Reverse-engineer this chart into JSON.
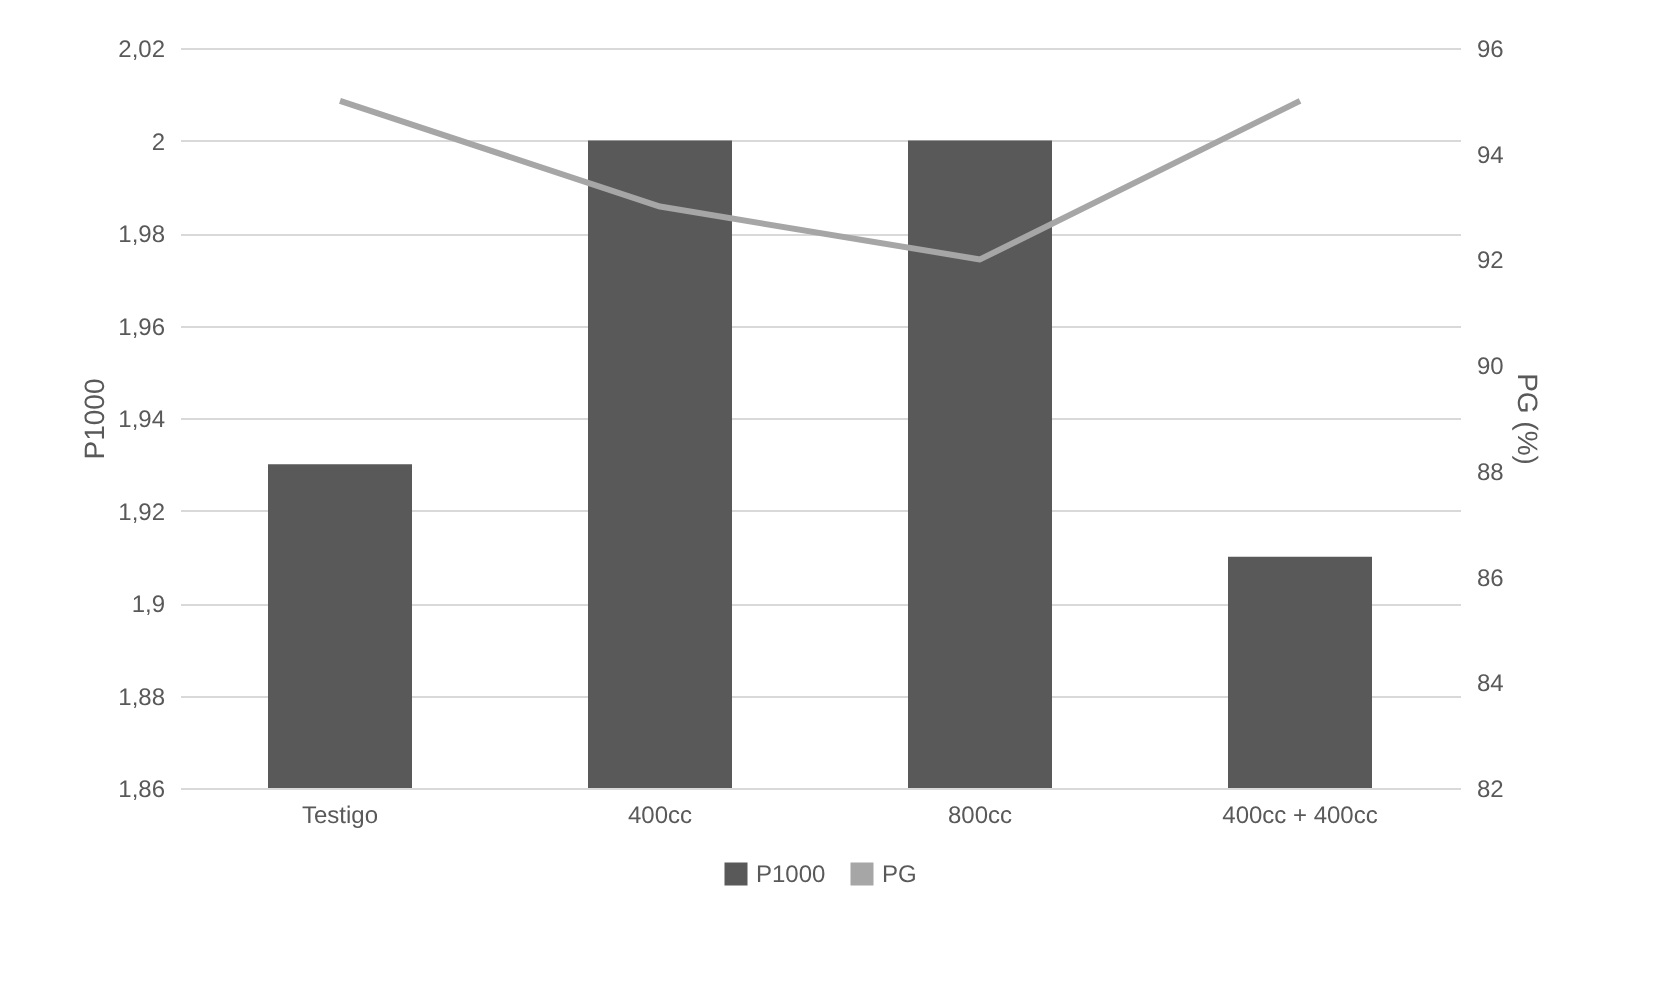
{
  "chart_data": {
    "type": "bar",
    "categories": [
      "Testigo",
      "400cc",
      "800cc",
      "400cc + 400cc"
    ],
    "ylabel": "P1000",
    "y2label": "PG (%)",
    "series": [
      {
        "name": "P1000",
        "color": "#595959",
        "values": [
          1.93,
          2.0,
          2.0,
          1.91
        ]
      },
      {
        "name": "PG",
        "type": "line",
        "axis": "y2",
        "color": "#a6a6a6",
        "values": [
          95,
          93,
          92,
          95
        ]
      }
    ],
    "ylim": [
      1.86,
      2.02
    ],
    "yticks": [
      {
        "value": 1.86,
        "label": "1,86"
      },
      {
        "value": 1.88,
        "label": "1,88"
      },
      {
        "value": 1.9,
        "label": "1,9"
      },
      {
        "value": 1.92,
        "label": "1,92"
      },
      {
        "value": 1.94,
        "label": "1,94"
      },
      {
        "value": 1.96,
        "label": "1,96"
      },
      {
        "value": 1.98,
        "label": "1,98"
      },
      2,
      {
        "value": 2.02,
        "label": "2,02"
      }
    ],
    "y2lim": [
      82,
      96
    ],
    "y2ticks": [
      82,
      84,
      86,
      88,
      90,
      92,
      94,
      96
    ],
    "grid": "y",
    "legend": "bottom"
  }
}
